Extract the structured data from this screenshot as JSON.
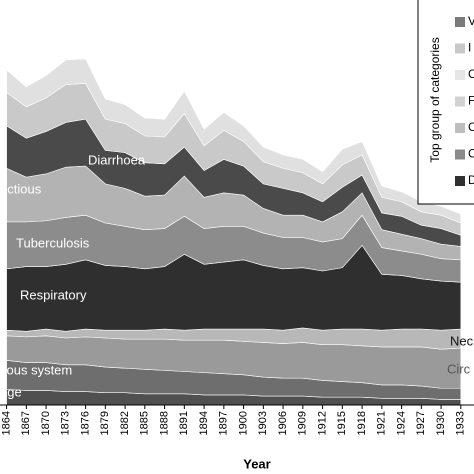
{
  "chart_data": {
    "type": "stacked-area",
    "x_label": "Year",
    "x": [
      1864,
      1867,
      1870,
      1873,
      1876,
      1879,
      1882,
      1885,
      1888,
      1891,
      1894,
      1897,
      1900,
      1903,
      1906,
      1909,
      1912,
      1915,
      1918,
      1921,
      1924,
      1927,
      1930,
      1933
    ],
    "xlim": [
      1863,
      1935
    ],
    "xticks": [
      1864,
      1867,
      1870,
      1873,
      1876,
      1879,
      1882,
      1885,
      1888,
      1891,
      1894,
      1897,
      1900,
      1903,
      1906,
      1909,
      1912,
      1915,
      1918,
      1921,
      1924,
      1927,
      1930,
      1933
    ],
    "ylim": [
      0,
      300
    ],
    "series": [
      {
        "name": "age",
        "color": "#505050",
        "values": [
          14,
          13,
          13,
          12,
          12,
          11,
          11,
          10,
          10,
          10,
          9,
          9,
          9,
          8,
          8,
          8,
          7,
          7,
          7,
          6,
          6,
          6,
          5,
          5
        ]
      },
      {
        "name": "vous system",
        "color": "#6e6e6e",
        "values": [
          26,
          25,
          25,
          24,
          24,
          23,
          22,
          22,
          21,
          20,
          20,
          19,
          18,
          17,
          16,
          16,
          15,
          14,
          13,
          12,
          12,
          11,
          10,
          10
        ]
      },
      {
        "name": "Circ",
        "color": "#9a9a9a",
        "values": [
          22,
          23,
          24,
          24,
          25,
          26,
          26,
          27,
          28,
          28,
          29,
          30,
          30,
          31,
          31,
          32,
          32,
          33,
          33,
          34,
          34,
          35,
          35,
          36
        ]
      },
      {
        "name": "Nec",
        "color": "#b8b8b8",
        "values": [
          5,
          5,
          6,
          6,
          7,
          7,
          8,
          8,
          9,
          9,
          10,
          10,
          11,
          12,
          12,
          13,
          13,
          14,
          15,
          15,
          16,
          16,
          17,
          17
        ]
      },
      {
        "name": "Respiratory",
        "color": "#2f2f2f",
        "values": [
          55,
          58,
          56,
          60,
          62,
          58,
          57,
          55,
          56,
          68,
          58,
          60,
          62,
          57,
          55,
          54,
          53,
          55,
          75,
          50,
          48,
          45,
          44,
          42
        ]
      },
      {
        "name": "Tuberculosis",
        "color": "#8c8c8c",
        "values": [
          42,
          40,
          41,
          42,
          40,
          38,
          36,
          35,
          34,
          34,
          32,
          32,
          30,
          29,
          28,
          27,
          26,
          26,
          27,
          24,
          22,
          22,
          20,
          20
        ]
      },
      {
        "name": "ectious",
        "color": "#b3b3b3",
        "values": [
          48,
          40,
          42,
          45,
          44,
          35,
          34,
          30,
          30,
          36,
          28,
          30,
          28,
          22,
          20,
          20,
          18,
          24,
          20,
          16,
          15,
          14,
          13,
          12
        ]
      },
      {
        "name": "Diarrhoea",
        "color": "#4a4a4a",
        "values": [
          38,
          35,
          38,
          40,
          42,
          30,
          32,
          30,
          28,
          26,
          24,
          30,
          26,
          22,
          24,
          20,
          18,
          22,
          16,
          15,
          16,
          12,
          14,
          10
        ]
      },
      {
        "color": "#c9c9c9",
        "values": [
          30,
          28,
          30,
          34,
          32,
          28,
          26,
          24,
          24,
          30,
          22,
          26,
          22,
          20,
          18,
          18,
          16,
          20,
          18,
          14,
          13,
          12,
          12,
          11
        ]
      },
      {
        "color": "#e0e0e0",
        "values": [
          20,
          18,
          20,
          22,
          22,
          18,
          17,
          16,
          16,
          20,
          15,
          16,
          14,
          13,
          12,
          12,
          11,
          14,
          12,
          10,
          9,
          9,
          8,
          8
        ]
      }
    ],
    "legend": {
      "title": "Top group of categories",
      "entries": [
        {
          "name": "V",
          "color": "#7a7a7a"
        },
        {
          "name": "I",
          "color": "#c8c8c8"
        },
        {
          "name": "C",
          "color": "#e6e6e6"
        },
        {
          "name": "F",
          "color": "#d2d2d2"
        },
        {
          "name": "C",
          "color": "#bdbdbd"
        },
        {
          "name": "C",
          "color": "#8a8a8a"
        },
        {
          "name": "D",
          "color": "#303030"
        }
      ]
    }
  }
}
